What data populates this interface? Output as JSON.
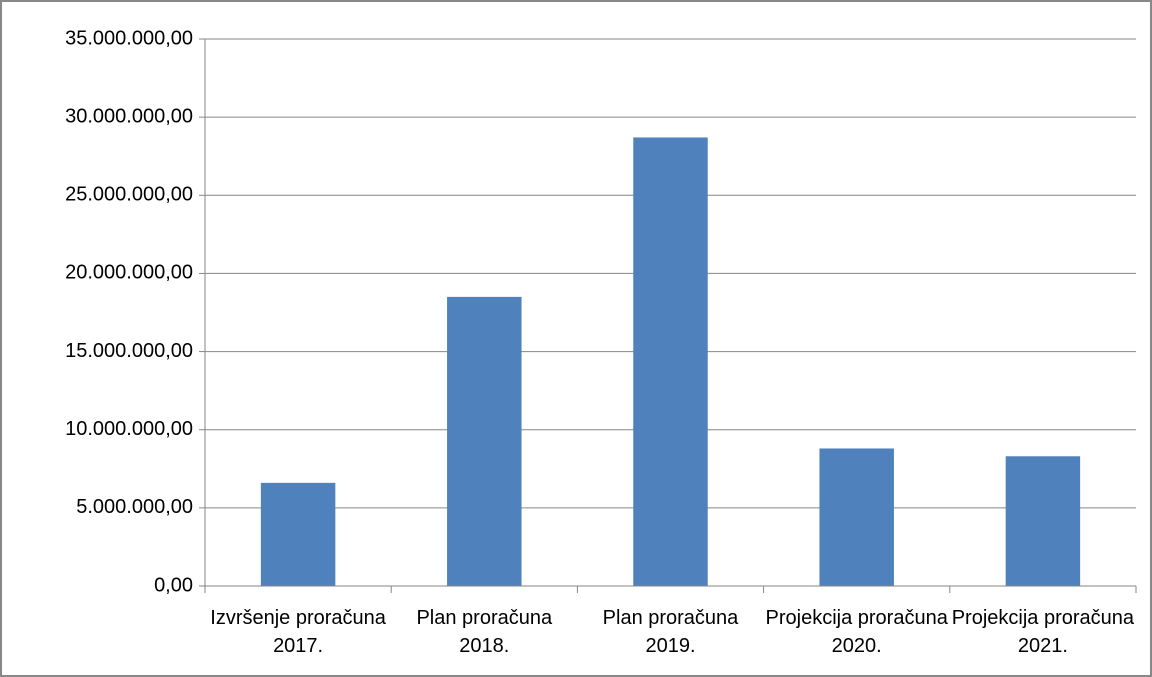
{
  "chart_data": {
    "type": "bar",
    "categories": [
      "Izvršenje proračuna 2017.",
      "Plan proračuna 2018.",
      "Plan proračuna 2019.",
      "Projekcija proračuna 2020.",
      "Projekcija proračuna 2021."
    ],
    "values": [
      6600000,
      18500000,
      28700000,
      8800000,
      8300000
    ],
    "color": "#4f81bd",
    "ylim": [
      0,
      35000000
    ],
    "yticks": [
      {
        "value": 0,
        "label": "0,00"
      },
      {
        "value": 5000000,
        "label": "5.000.000,00"
      },
      {
        "value": 10000000,
        "label": "10.000.000,00"
      },
      {
        "value": 15000000,
        "label": "15.000.000,00"
      },
      {
        "value": 20000000,
        "label": "20.000.000,00"
      },
      {
        "value": 25000000,
        "label": "25.000.000,00"
      },
      {
        "value": 30000000,
        "label": "30.000.000,00"
      },
      {
        "value": 35000000,
        "label": "35.000.000,00"
      }
    ],
    "grid": true
  }
}
